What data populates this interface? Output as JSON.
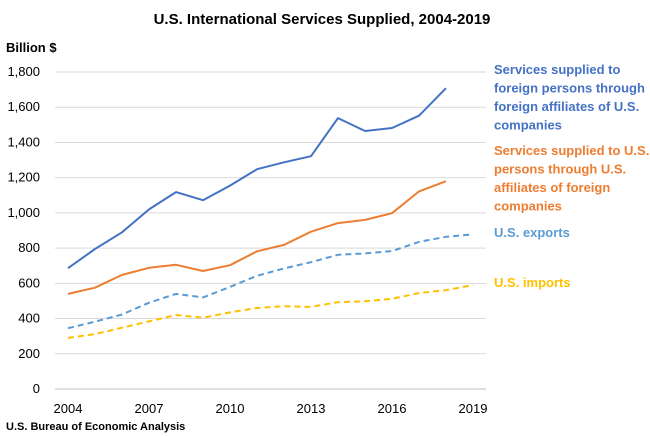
{
  "chart_data": {
    "type": "line",
    "title": "U.S. International Services Supplied, 2004-2019",
    "ylabel": "Billion $",
    "xlabel": "",
    "source": "U.S. Bureau of Economic Analysis",
    "x": [
      2004,
      2005,
      2006,
      2007,
      2008,
      2009,
      2010,
      2011,
      2012,
      2013,
      2014,
      2015,
      2016,
      2017,
      2018,
      2019
    ],
    "ylim": [
      0,
      1800
    ],
    "yticks": [
      "0",
      "200",
      "400",
      "600",
      "800",
      "1,000",
      "1,200",
      "1,400",
      "1,600",
      "1,800"
    ],
    "xticks": [
      "2004",
      "2007",
      "2010",
      "2013",
      "2016",
      "2019"
    ],
    "grid": "horizontal",
    "legend_position": "right",
    "series": [
      {
        "name": "Services supplied to foreign persons through foreign affiliates of U.S. companies",
        "name_lines": [
          "Services supplied to",
          "foreign persons through",
          "foreign affiliates of U.S.",
          "companies"
        ],
        "color": "#4472C4",
        "dash": "solid",
        "values": [
          686,
          795,
          890,
          1020,
          1118,
          1072,
          1155,
          1248,
          1287,
          1322,
          1538,
          1465,
          1482,
          1552,
          1708,
          null
        ]
      },
      {
        "name": "Services supplied to U.S. persons through U.S. affiliates of foreign companies",
        "name_lines": [
          "Services supplied to U.S.",
          "persons through U.S.",
          "affiliates of foreign",
          "companies"
        ],
        "color": "#ED7D31",
        "dash": "solid",
        "values": [
          540,
          575,
          648,
          688,
          705,
          670,
          703,
          782,
          818,
          893,
          942,
          960,
          998,
          1122,
          1180,
          null
        ]
      },
      {
        "name": "U.S. exports",
        "name_lines": [
          "U.S. exports"
        ],
        "color": "#5B9BD5",
        "dash": "dashed",
        "values": [
          345,
          382,
          423,
          490,
          540,
          520,
          580,
          643,
          685,
          720,
          762,
          770,
          783,
          835,
          864,
          878
        ]
      },
      {
        "name": "U.S. imports",
        "name_lines": [
          "U.S. imports"
        ],
        "color": "#FFC000",
        "dash": "dashed",
        "values": [
          290,
          312,
          348,
          384,
          420,
          405,
          435,
          460,
          470,
          466,
          493,
          498,
          512,
          545,
          561,
          590
        ]
      }
    ]
  }
}
